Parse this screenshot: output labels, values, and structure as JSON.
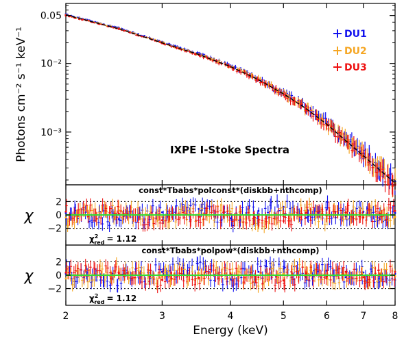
{
  "chart_data": [
    {
      "type": "scatter",
      "title": "IXPE I-Stoke Spectra",
      "xlabel": "Energy (keV)",
      "ylabel": "Photons cm⁻² s⁻¹ keV⁻¹",
      "xscale": "log",
      "yscale": "log",
      "xlim": [
        2,
        8
      ],
      "ylim": [
        0.00017,
        0.075
      ],
      "xticks": [
        "2",
        "3",
        "4",
        "5",
        "6",
        "7",
        "8"
      ],
      "yticks": [
        "0.05",
        "10⁻²",
        "10⁻³"
      ],
      "legend": {
        "placement": "top-right",
        "entries": [
          "DU1",
          "DU2",
          "DU3"
        ]
      },
      "x": [
        2.0,
        2.5,
        3.0,
        3.5,
        4.0,
        4.5,
        5.0,
        5.5,
        6.0,
        6.5,
        7.0,
        7.5,
        8.0
      ],
      "model_line": [
        0.051,
        0.032,
        0.02,
        0.0135,
        0.009,
        0.0058,
        0.0036,
        0.0022,
        0.0013,
        0.00075,
        0.00045,
        0.00028,
        0.00018
      ],
      "series": [
        {
          "name": "DU1",
          "color": "#1111ee",
          "values": [
            0.052,
            0.033,
            0.0206,
            0.0139,
            0.0093,
            0.006,
            0.0038,
            0.0023,
            0.0014,
            0.0008,
            0.00048,
            0.0003,
            0.00019
          ]
        },
        {
          "name": "DU2",
          "color": "#f5a623",
          "values": [
            0.051,
            0.0323,
            0.0202,
            0.0136,
            0.0091,
            0.0059,
            0.0037,
            0.0022,
            0.0013,
            0.00076,
            0.00046,
            0.00028,
            0.00018
          ]
        },
        {
          "name": "DU3",
          "color": "#ee1111",
          "values": [
            0.05,
            0.0318,
            0.0198,
            0.0133,
            0.0089,
            0.0057,
            0.0035,
            0.0021,
            0.00125,
            0.00073,
            0.00044,
            0.00027,
            0.00017
          ]
        }
      ]
    },
    {
      "type": "scatter",
      "title": "const*Tbabs*polconst*(diskbb+nthcomp)",
      "ylabel": "χ",
      "xscale": "log",
      "xlim": [
        2,
        8
      ],
      "ylim": [
        -4.5,
        4.5
      ],
      "yticks": [
        "2",
        "0",
        "−2"
      ],
      "reference_lines": [
        -2,
        0,
        2
      ],
      "annotation": "χ²red = 1.12",
      "annotation_parts": {
        "symbol": "χ",
        "sup": "2",
        "sub": "red",
        "value": "= 1.12"
      },
      "x": [
        2.0,
        2.5,
        3.0,
        3.5,
        4.0,
        4.5,
        5.0,
        5.5,
        6.0,
        6.5,
        7.0,
        7.5,
        8.0
      ],
      "series": [
        {
          "name": "DU1",
          "values": [
            0.3,
            -0.6,
            0.4,
            0.9,
            -0.5,
            0.6,
            1.2,
            -0.4,
            0.8,
            -0.2,
            0.5,
            -0.6,
            0.3
          ]
        },
        {
          "name": "DU2",
          "values": [
            -0.4,
            0.7,
            -0.3,
            0.2,
            0.5,
            -0.7,
            0.1,
            0.6,
            -0.5,
            0.3,
            -0.2,
            0.4,
            -0.3
          ]
        },
        {
          "name": "DU3",
          "values": [
            0.5,
            0.2,
            -0.8,
            -0.3,
            0.1,
            -0.2,
            -0.9,
            0.3,
            -0.1,
            0.4,
            -0.4,
            0.2,
            0.6
          ]
        }
      ]
    },
    {
      "type": "scatter",
      "title": "const*Tbabs*polpow*(diskbb+nthcomp)",
      "xlabel": "Energy (keV)",
      "ylabel": "χ",
      "xscale": "log",
      "xlim": [
        2,
        8
      ],
      "ylim": [
        -4.5,
        4.5
      ],
      "yticks": [
        "2",
        "0",
        "−2"
      ],
      "reference_lines": [
        -2,
        0,
        2
      ],
      "annotation": "χ²red = 1.12",
      "annotation_parts": {
        "symbol": "χ",
        "sup": "2",
        "sub": "red",
        "value": "= 1.12"
      },
      "x": [
        2.0,
        2.5,
        3.0,
        3.5,
        4.0,
        4.5,
        5.0,
        5.5,
        6.0,
        6.5,
        7.0,
        7.5,
        8.0
      ],
      "series": [
        {
          "name": "DU1",
          "values": [
            0.2,
            -0.5,
            0.5,
            0.8,
            -0.6,
            0.5,
            1.0,
            -0.3,
            0.7,
            -0.3,
            0.4,
            -0.5,
            0.2
          ]
        },
        {
          "name": "DU2",
          "values": [
            -0.5,
            0.6,
            -0.2,
            0.3,
            0.4,
            -0.6,
            0.2,
            0.5,
            -0.4,
            0.2,
            -0.3,
            0.3,
            -0.2
          ]
        },
        {
          "name": "DU3",
          "values": [
            0.4,
            0.3,
            -0.7,
            -0.4,
            0.2,
            -0.3,
            -0.8,
            0.2,
            -0.2,
            0.5,
            -0.3,
            0.1,
            0.5
          ]
        }
      ]
    }
  ]
}
